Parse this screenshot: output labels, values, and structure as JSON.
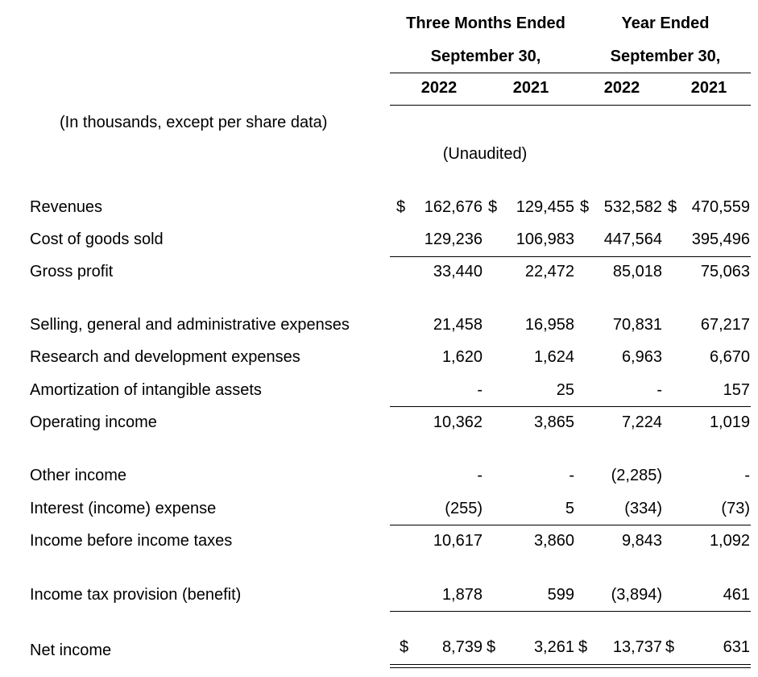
{
  "header": {
    "group1_line1": "Three Months Ended",
    "group1_line2": "September 30,",
    "group2_line1": "Year Ended",
    "group2_line2": "September 30,",
    "years": [
      "2022",
      "2021",
      "2022",
      "2021"
    ],
    "units_note": "(In thousands, except per share data)",
    "unaudited": "(Unaudited)"
  },
  "currency_symbol": "$",
  "rows": {
    "revenues": {
      "label": "Revenues",
      "values": [
        "162,676",
        "129,455",
        "532,582",
        "470,559"
      ]
    },
    "cogs": {
      "label": "Cost of goods sold",
      "values": [
        "129,236",
        "106,983",
        "447,564",
        "395,496"
      ]
    },
    "gross_profit": {
      "label": "Gross profit",
      "values": [
        "33,440",
        "22,472",
        "85,018",
        "75,063"
      ]
    },
    "sga": {
      "label": "Selling, general and administrative expenses",
      "values": [
        "21,458",
        "16,958",
        "70,831",
        "67,217"
      ]
    },
    "rnd": {
      "label": "Research and development expenses",
      "values": [
        "1,620",
        "1,624",
        "6,963",
        "6,670"
      ]
    },
    "amort": {
      "label": "Amortization of intangible assets",
      "values": [
        "-",
        "25",
        "-",
        "157"
      ]
    },
    "op_income": {
      "label": "Operating income",
      "values": [
        "10,362",
        "3,865",
        "7,224",
        "1,019"
      ]
    },
    "other_income": {
      "label": "Other income",
      "values": [
        "-",
        "-",
        "(2,285)",
        "-"
      ]
    },
    "interest": {
      "label": "Interest (income) expense",
      "values": [
        "(255)",
        "5",
        "(334)",
        "(73)"
      ]
    },
    "pretax": {
      "label": "Income before income taxes",
      "values": [
        "10,617",
        "3,860",
        "9,843",
        "1,092"
      ]
    },
    "tax": {
      "label": "Income tax provision (benefit)",
      "values": [
        "1,878",
        "599",
        "(3,894)",
        "461"
      ]
    },
    "net_income": {
      "label": "Net income",
      "values": [
        "8,739",
        "3,261",
        "13,737",
        "631"
      ]
    }
  }
}
